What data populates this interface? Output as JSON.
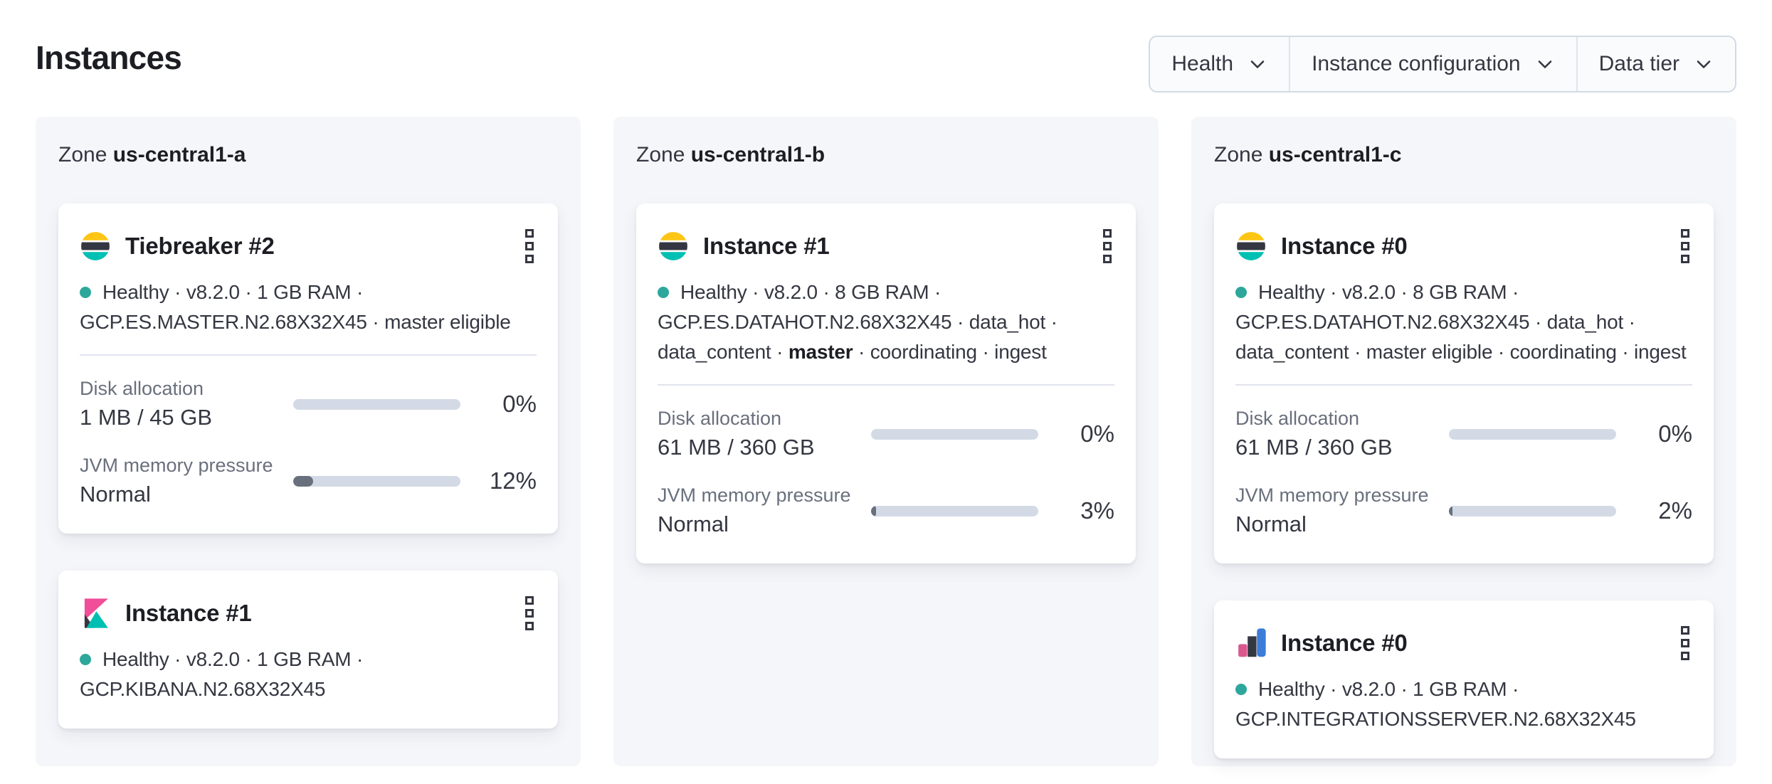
{
  "header": {
    "title": "Instances"
  },
  "filters": [
    {
      "label": "Health"
    },
    {
      "label": "Instance configuration"
    },
    {
      "label": "Data tier"
    }
  ],
  "colors": {
    "health_dot": "#2DA79C",
    "progress_track": "#D3DAE6",
    "progress_fill": "#69707D",
    "panel_background": "#F5F6FA",
    "elastic_yellow": "#FEC514",
    "elastic_teal": "#00BFB3",
    "kibana_pink": "#F04E98",
    "integrations_pink": "#D9598F",
    "integrations_blue": "#3B7DD8",
    "dark_shade": "#343741"
  },
  "zones": [
    {
      "label_prefix": "Zone",
      "name": "us-central1-a",
      "cards": [
        {
          "logo_icon": "elasticsearch-logo",
          "title": "Tiebreaker #2",
          "meta_line1": "Healthy · v8.2.0 · 1 GB RAM ·",
          "meta_line2": "GCP.ES.MASTER.N2.68X32X45 · master eligible",
          "metrics": [
            {
              "label": "Disk allocation",
              "value": "1 MB / 45 GB",
              "percent": "0%",
              "fill": 0
            },
            {
              "label": "JVM memory pressure",
              "value": "Normal",
              "percent": "12%",
              "fill": 12
            }
          ]
        },
        {
          "logo_icon": "kibana-logo",
          "title": "Instance #1",
          "meta_line1": "Healthy · v8.2.0 · 1 GB RAM ·",
          "meta_line2": "GCP.KIBANA.N2.68X32X45"
        }
      ]
    },
    {
      "label_prefix": "Zone",
      "name": "us-central1-b",
      "cards": [
        {
          "logo_icon": "elasticsearch-logo",
          "title": "Instance #1",
          "meta_line1": "Healthy · v8.2.0 · 8 GB RAM ·",
          "meta_line2": "GCP.ES.DATAHOT.N2.68X32X45 · data_hot ·",
          "meta_line3_pre": "data_content · ",
          "meta_line3_bold": "master",
          "meta_line3_post": " · coordinating · ingest",
          "metrics": [
            {
              "label": "Disk allocation",
              "value": "61 MB / 360 GB",
              "percent": "0%",
              "fill": 0
            },
            {
              "label": "JVM memory pressure",
              "value": "Normal",
              "percent": "3%",
              "fill": 3
            }
          ]
        }
      ]
    },
    {
      "label_prefix": "Zone",
      "name": "us-central1-c",
      "cards": [
        {
          "logo_icon": "elasticsearch-logo",
          "title": "Instance #0",
          "meta_line1": "Healthy · v8.2.0 · 8 GB RAM ·",
          "meta_line2": "GCP.ES.DATAHOT.N2.68X32X45 · data_hot ·",
          "meta_line3": "data_content · master eligible · coordinating · ingest",
          "metrics": [
            {
              "label": "Disk allocation",
              "value": "61 MB / 360 GB",
              "percent": "0%",
              "fill": 0
            },
            {
              "label": "JVM memory pressure",
              "value": "Normal",
              "percent": "2%",
              "fill": 2
            }
          ]
        },
        {
          "logo_icon": "integrations-server-logo",
          "title": "Instance #0",
          "meta_line1": "Healthy · v8.2.0 · 1 GB RAM ·",
          "meta_line2": "GCP.INTEGRATIONSSERVER.N2.68X32X45"
        }
      ]
    }
  ]
}
